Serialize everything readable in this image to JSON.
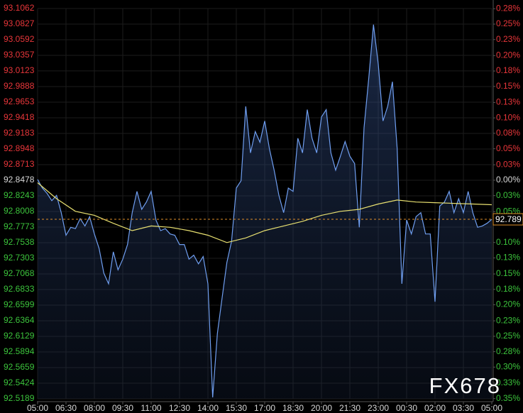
{
  "chart_data": {
    "type": "line",
    "watermark": "FX678",
    "xlim": [
      0,
      24
    ],
    "xticks": [
      {
        "value": 0,
        "label": "05:00"
      },
      {
        "value": 1.5,
        "label": "06:30"
      },
      {
        "value": 3,
        "label": "08:00"
      },
      {
        "value": 4.5,
        "label": "09:30"
      },
      {
        "value": 6,
        "label": "11:00"
      },
      {
        "value": 7.5,
        "label": "12:30"
      },
      {
        "value": 9,
        "label": "14:00"
      },
      {
        "value": 10.5,
        "label": "15:30"
      },
      {
        "value": 12,
        "label": "17:00"
      },
      {
        "value": 13.5,
        "label": "18:30"
      },
      {
        "value": 15,
        "label": "20:00"
      },
      {
        "value": 16.5,
        "label": "21:30"
      },
      {
        "value": 18,
        "label": "23:00"
      },
      {
        "value": 19.5,
        "label": "00:30"
      },
      {
        "value": 21,
        "label": "02:00"
      },
      {
        "value": 22.5,
        "label": "03:30"
      },
      {
        "value": 24,
        "label": "05:00"
      }
    ],
    "ylim": [
      92.5189,
      93.1062
    ],
    "yticks": [
      93.1062,
      93.0827,
      93.0592,
      93.0357,
      93.0123,
      92.9888,
      92.9653,
      92.9418,
      92.9183,
      92.8948,
      92.8713,
      92.8478,
      92.8243,
      92.8008,
      92.7773,
      92.7538,
      92.7303,
      92.7068,
      92.6833,
      92.6599,
      92.6364,
      92.6129,
      92.5894,
      92.5659,
      92.5424,
      92.5189
    ],
    "y2lim": [
      -0.3544,
      0.2783
    ],
    "y2ticks": [
      {
        "value": 0.278,
        "label": "0.28%"
      },
      {
        "value": 0.253,
        "label": "0.25%"
      },
      {
        "value": 0.228,
        "label": "0.23%"
      },
      {
        "value": 0.202,
        "label": "0.20%"
      },
      {
        "value": 0.177,
        "label": "0.18%"
      },
      {
        "value": 0.152,
        "label": "0.15%"
      },
      {
        "value": 0.126,
        "label": "0.13%"
      },
      {
        "value": 0.101,
        "label": "0.10%"
      },
      {
        "value": 0.076,
        "label": "0.08%"
      },
      {
        "value": 0.051,
        "label": "0.05%"
      },
      {
        "value": 0.025,
        "label": "0.03%"
      },
      {
        "value": 0,
        "label": "0.00%"
      },
      {
        "value": -0.025,
        "label": "0.03%"
      },
      {
        "value": -0.051,
        "label": "0.05%"
      },
      {
        "value": -0.101,
        "label": "0.10%"
      },
      {
        "value": -0.126,
        "label": "0.13%"
      },
      {
        "value": -0.152,
        "label": "0.15%"
      },
      {
        "value": -0.177,
        "label": "0.18%"
      },
      {
        "value": -0.202,
        "label": "0.20%"
      },
      {
        "value": -0.228,
        "label": "0.23%"
      },
      {
        "value": -0.253,
        "label": "0.25%"
      },
      {
        "value": -0.278,
        "label": "0.28%"
      },
      {
        "value": -0.303,
        "label": "0.30%"
      },
      {
        "value": -0.329,
        "label": "0.33%"
      },
      {
        "value": -0.354,
        "label": "0.35%"
      }
    ],
    "up_color": "#e8363a",
    "down_color": "#3cc43c",
    "neutral_color": "#d8d8d8",
    "grid": true,
    "last_price": 92.789,
    "last_price_color": "#e0902a",
    "series": [
      {
        "color": "#6f9ef0",
        "area": true,
        "x": [
          0,
          0.25,
          0.5,
          0.75,
          1,
          1.25,
          1.5,
          1.75,
          2,
          2.25,
          2.5,
          2.75,
          3,
          3.25,
          3.5,
          3.75,
          4,
          4.25,
          4.5,
          4.75,
          5,
          5.25,
          5.5,
          5.75,
          6,
          6.25,
          6.5,
          6.75,
          7,
          7.25,
          7.5,
          7.75,
          8,
          8.25,
          8.5,
          8.75,
          9,
          9.25,
          9.5,
          9.75,
          10,
          10.25,
          10.5,
          10.75,
          11,
          11.25,
          11.5,
          11.75,
          12,
          12.25,
          12.5,
          12.75,
          13,
          13.25,
          13.5,
          13.75,
          14,
          14.25,
          14.5,
          14.75,
          15,
          15.25,
          15.5,
          15.75,
          16,
          16.25,
          16.5,
          16.75,
          17,
          17.25,
          17.5,
          17.75,
          18,
          18.25,
          18.5,
          18.75,
          19,
          19.25,
          19.5,
          19.75,
          20,
          20.25,
          20.5,
          20.75,
          21,
          21.25,
          21.5,
          21.75,
          22,
          22.25,
          22.5,
          22.75,
          23,
          23.25,
          23.5,
          23.75,
          24
        ],
        "values": [
          92.849,
          92.836,
          92.828,
          92.817,
          92.825,
          92.799,
          92.765,
          92.777,
          92.775,
          92.79,
          92.779,
          92.793,
          92.767,
          92.745,
          92.708,
          92.692,
          92.74,
          92.713,
          92.729,
          92.751,
          92.799,
          92.831,
          92.804,
          92.815,
          92.831,
          92.788,
          92.772,
          92.775,
          92.767,
          92.765,
          92.751,
          92.751,
          92.729,
          92.735,
          92.722,
          92.733,
          92.692,
          92.521,
          92.617,
          92.671,
          92.724,
          92.756,
          92.836,
          92.847,
          92.959,
          92.889,
          92.921,
          92.905,
          92.937,
          92.895,
          92.863,
          92.825,
          92.799,
          92.836,
          92.831,
          92.911,
          92.889,
          92.954,
          92.911,
          92.889,
          92.943,
          92.954,
          92.889,
          92.863,
          92.884,
          92.906,
          92.884,
          92.873,
          92.777,
          92.927,
          93.002,
          93.082,
          93.023,
          92.937,
          92.959,
          92.996,
          92.895,
          92.692,
          92.788,
          92.767,
          92.793,
          92.799,
          92.767,
          92.767,
          92.665,
          92.809,
          92.815,
          92.831,
          92.799,
          92.82,
          92.799,
          92.831,
          92.799,
          92.777,
          92.779,
          92.783,
          92.789
        ]
      },
      {
        "color": "#e8e070",
        "area": false,
        "x": [
          0,
          1,
          2,
          3,
          4,
          5,
          6,
          7,
          8,
          9,
          10,
          11,
          12,
          13,
          14,
          15,
          16,
          17,
          18,
          19,
          20,
          21,
          22,
          23,
          24
        ],
        "values": [
          92.844,
          92.82,
          92.801,
          92.795,
          92.783,
          92.772,
          92.779,
          92.777,
          92.772,
          92.765,
          92.754,
          92.761,
          92.772,
          92.779,
          92.786,
          92.795,
          92.801,
          92.804,
          92.812,
          92.818,
          92.815,
          92.814,
          92.813,
          92.812,
          92.811
        ]
      }
    ]
  }
}
